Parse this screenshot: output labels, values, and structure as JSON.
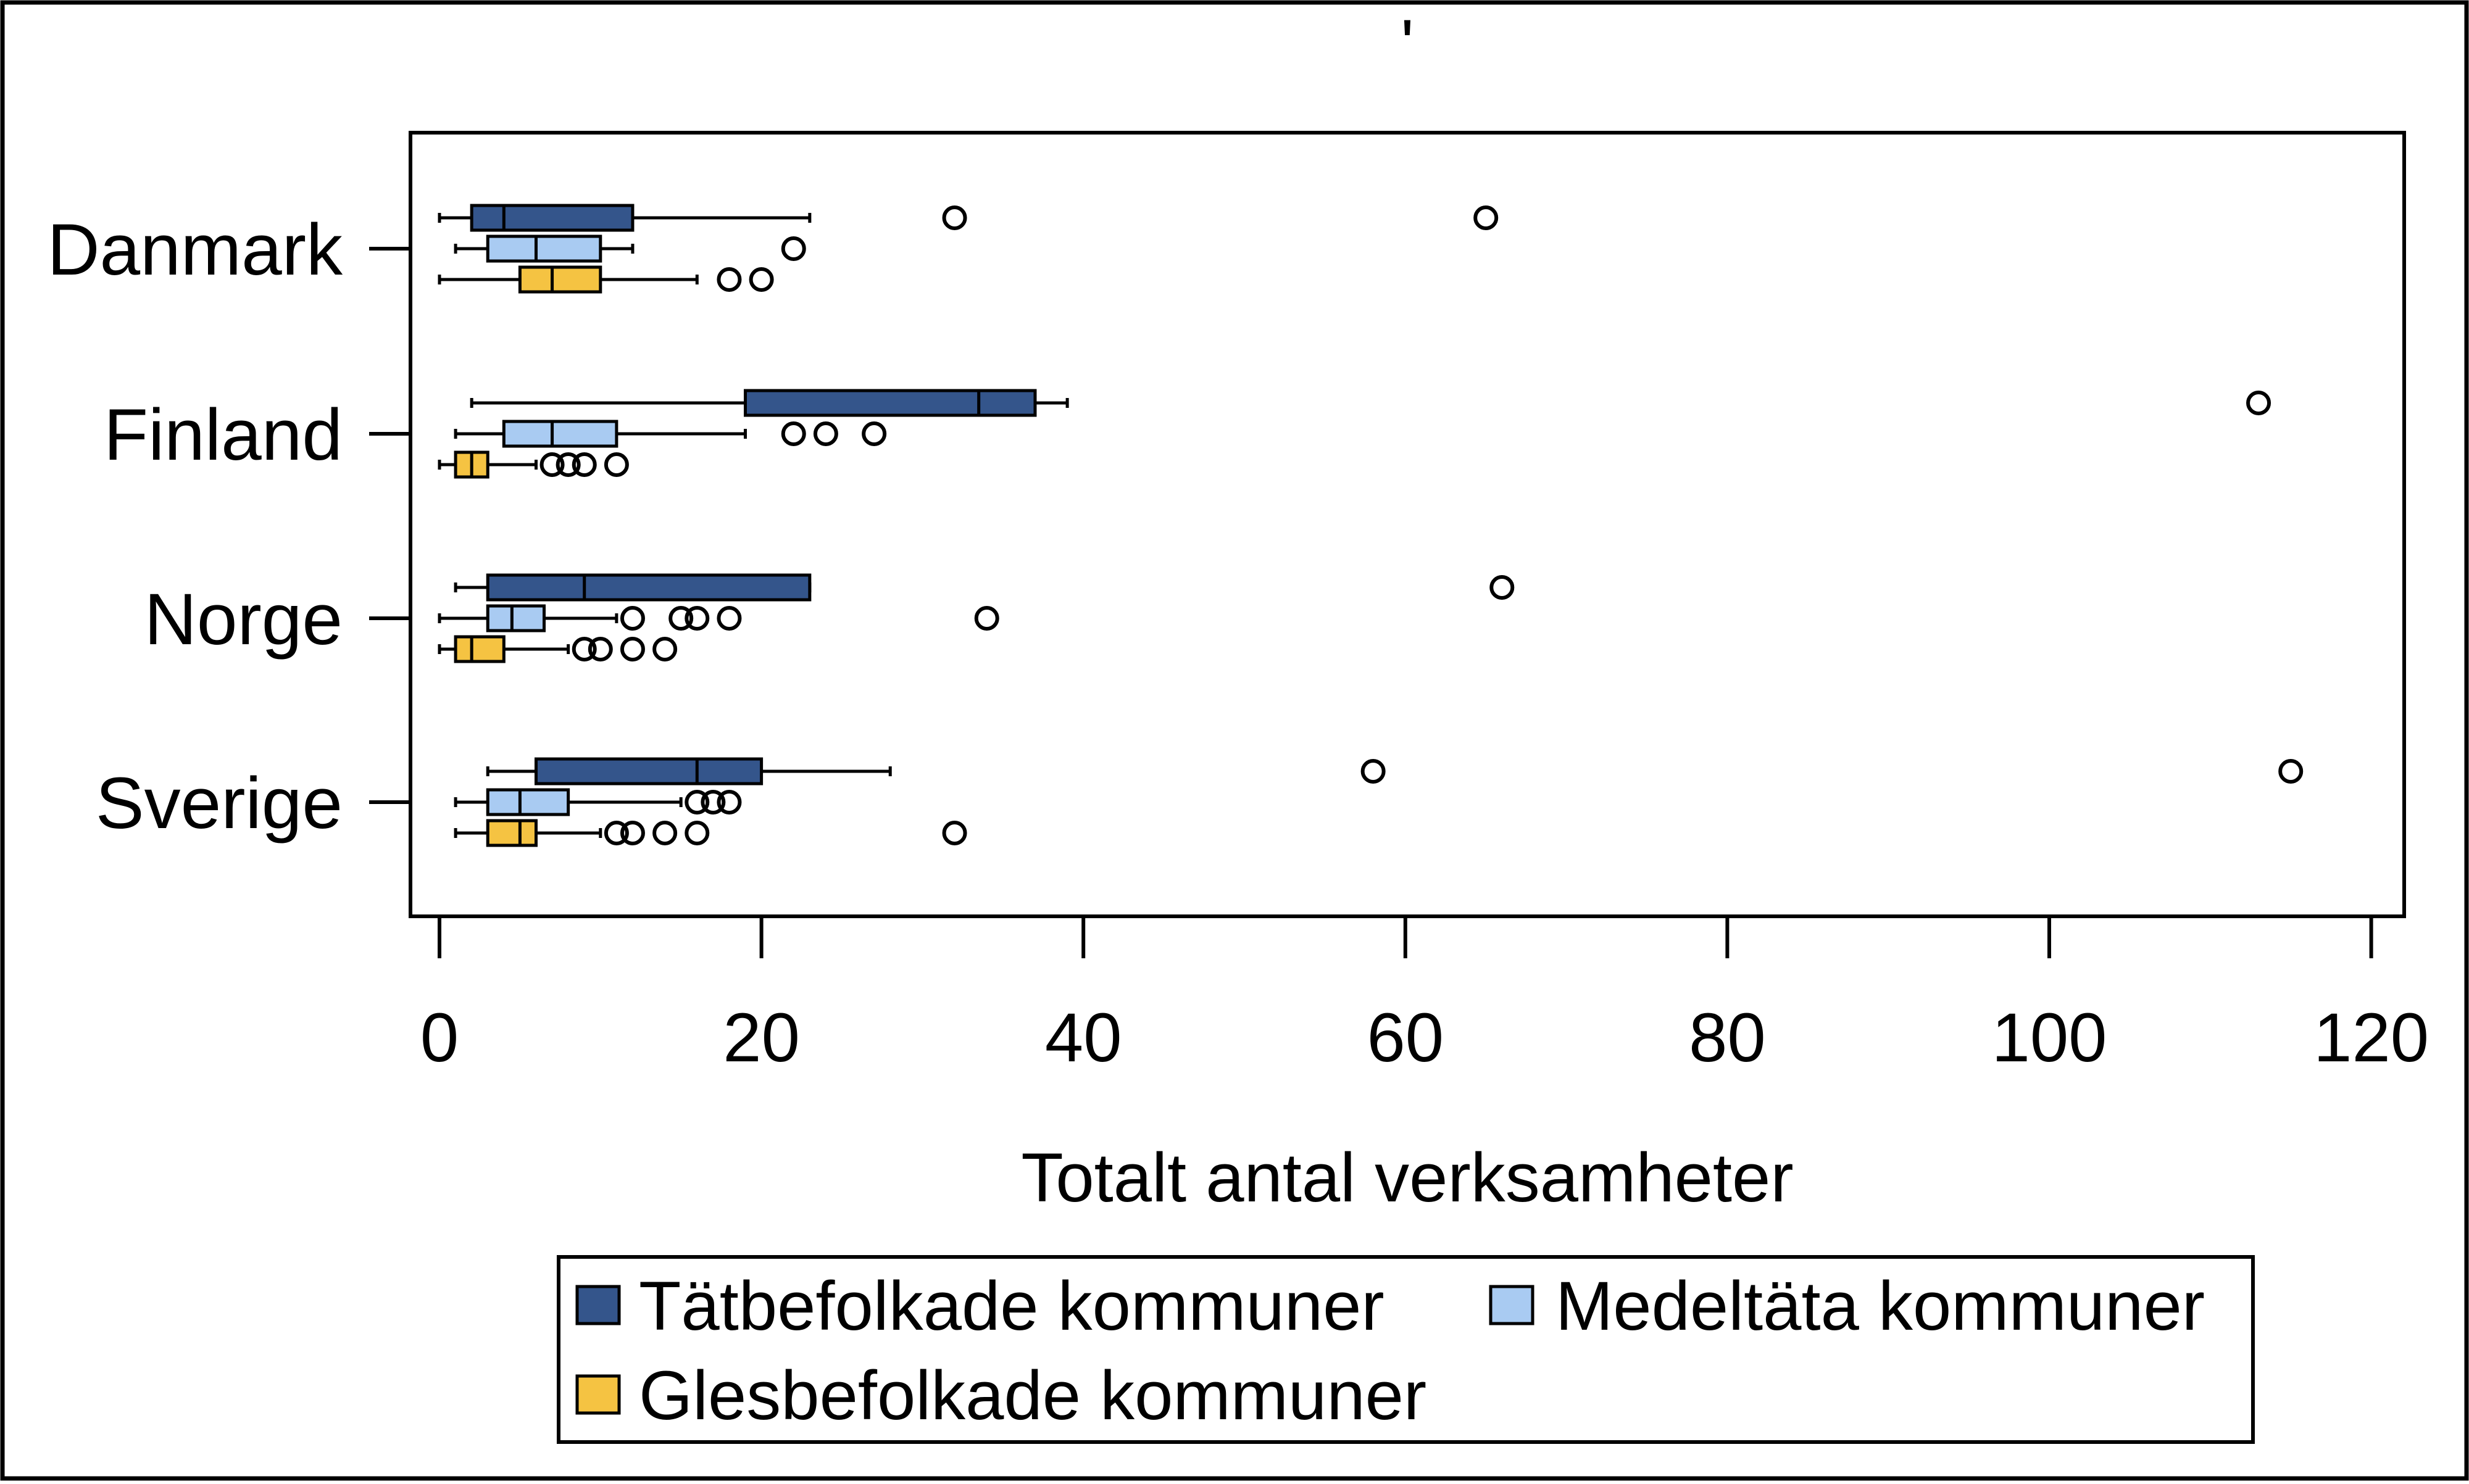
{
  "chart_data": {
    "type": "boxplot",
    "orientation": "horizontal",
    "title": "'",
    "xlabel": "Totalt antal verksamheter",
    "ylabel": "",
    "xlim": [
      -1,
      122
    ],
    "xticks": [
      0,
      20,
      40,
      60,
      80,
      100,
      120
    ],
    "grid": false,
    "legend_position": "bottom",
    "categories": [
      "Danmark",
      "Finland",
      "Norge",
      "Sverige"
    ],
    "series": [
      {
        "name": "Tätbefolkade kommuner",
        "color": "#34558b",
        "boxes": [
          {
            "whisker_low": 0,
            "q1": 2,
            "median": 4,
            "q3": 12,
            "whisker_high": 23,
            "outliers": [
              32,
              65
            ]
          },
          {
            "whisker_low": 2,
            "q1": 19,
            "median": 33.5,
            "q3": 37,
            "whisker_high": 39,
            "outliers": [
              113
            ]
          },
          {
            "whisker_low": 1,
            "q1": 3,
            "median": 9,
            "q3": 23,
            "whisker_high": 23,
            "outliers": [
              66
            ]
          },
          {
            "whisker_low": 3,
            "q1": 6,
            "median": 16,
            "q3": 20,
            "whisker_high": 28,
            "outliers": [
              58,
              115
            ]
          }
        ]
      },
      {
        "name": "Medeltäta kommuner",
        "color": "#a9cbf2",
        "boxes": [
          {
            "whisker_low": 1,
            "q1": 3,
            "median": 6,
            "q3": 10,
            "whisker_high": 12,
            "outliers": [
              22
            ]
          },
          {
            "whisker_low": 1,
            "q1": 4,
            "median": 7,
            "q3": 11,
            "whisker_high": 19,
            "outliers": [
              22,
              24,
              27
            ]
          },
          {
            "whisker_low": 0,
            "q1": 3,
            "median": 4.5,
            "q3": 6.5,
            "whisker_high": 11,
            "outliers": [
              12,
              15,
              16,
              18,
              34
            ]
          },
          {
            "whisker_low": 1,
            "q1": 3,
            "median": 5,
            "q3": 8,
            "whisker_high": 15,
            "outliers": [
              16,
              17,
              18
            ]
          }
        ]
      },
      {
        "name": "Glesbefolkade kommuner",
        "color": "#f5c342",
        "boxes": [
          {
            "whisker_low": 0,
            "q1": 5,
            "median": 7,
            "q3": 10,
            "whisker_high": 16,
            "outliers": [
              18,
              20
            ]
          },
          {
            "whisker_low": 0,
            "q1": 1,
            "median": 2,
            "q3": 3,
            "whisker_high": 6,
            "outliers": [
              7,
              8,
              9,
              11
            ]
          },
          {
            "whisker_low": 0,
            "q1": 1,
            "median": 2,
            "q3": 4,
            "whisker_high": 8,
            "outliers": [
              9,
              10,
              12,
              14
            ]
          },
          {
            "whisker_low": 1,
            "q1": 3,
            "median": 5,
            "q3": 6,
            "whisker_high": 10,
            "outliers": [
              11,
              12,
              14,
              16,
              32
            ]
          }
        ]
      }
    ]
  }
}
